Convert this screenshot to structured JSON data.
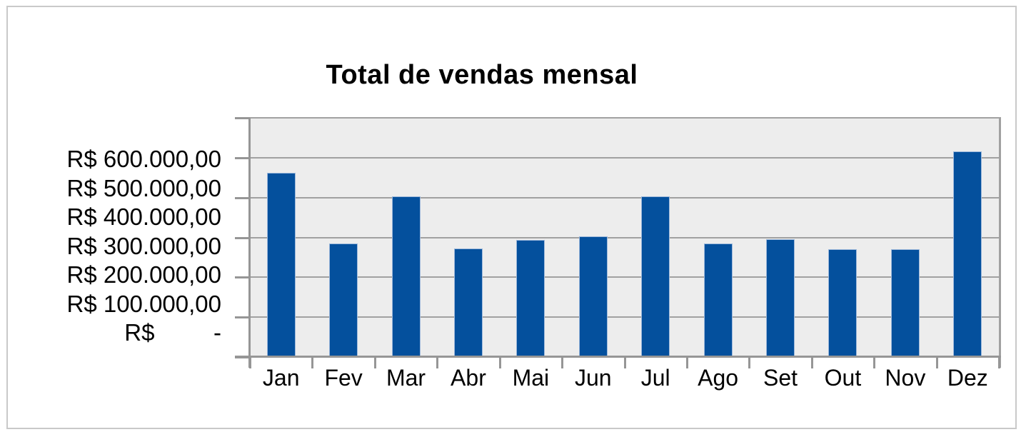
{
  "chart": {
    "currency_symbol": "R$",
    "bar_color": "#04509d",
    "bar_border_color": "#9db8db",
    "plot_background": "#ededed",
    "gridline_color": "#a1a1a1",
    "axis_color": "#969696",
    "frame_border_color": "#c9c9c9"
  },
  "chart_data": {
    "type": "bar",
    "title": "Total de vendas mensal",
    "categories": [
      "Jan",
      "Fev",
      "Mar",
      "Abr",
      "Mai",
      "Jun",
      "Jul",
      "Ago",
      "Set",
      "Out",
      "Nov",
      "Dez"
    ],
    "values": [
      463000,
      284000,
      403000,
      273000,
      294000,
      303000,
      403000,
      285000,
      296000,
      271000,
      271000,
      515000
    ],
    "series_name": "Total de vendas",
    "xlabel": "",
    "ylabel": "",
    "ylim": [
      0,
      600000
    ],
    "ytick_interval": 100000,
    "ytick_labels": [
      "R$ 600.000,00",
      "R$ 500.000,00",
      "R$ 400.000,00",
      "R$ 300.000,00",
      "R$ 200.000,00",
      "R$ 100.000,00",
      "R$         -"
    ],
    "grid": true,
    "legend_position": "none",
    "value_format": "R$ #.###,00"
  }
}
